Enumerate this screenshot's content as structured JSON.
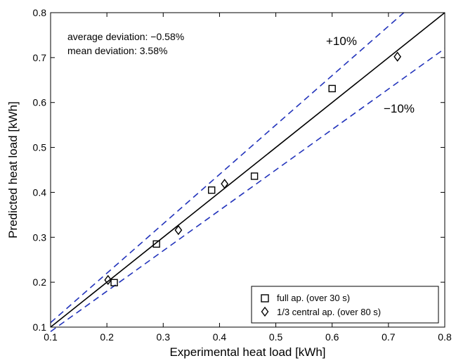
{
  "chart_data": {
    "type": "scatter",
    "xlabel": "Experimental heat load [kWh]",
    "ylabel": "Predicted heat load [kWh]",
    "xlim": [
      0.1,
      0.8
    ],
    "ylim": [
      0.1,
      0.8
    ],
    "xticks": [
      "0.1",
      "0.2",
      "0.3",
      "0.4",
      "0.5",
      "0.6",
      "0.7",
      "0.8"
    ],
    "yticks": [
      "0.1",
      "0.2",
      "0.3",
      "0.4",
      "0.5",
      "0.6",
      "0.7",
      "0.8"
    ],
    "grid": false,
    "annotations": [
      "average deviation: −0.58%",
      "mean deviation: 3.58%"
    ],
    "bands": [
      {
        "label": "+10%",
        "factor": 1.1,
        "style": "dashed",
        "color": "#2233bb"
      },
      {
        "label": "−10%",
        "factor": 0.9,
        "style": "dashed",
        "color": "#2233bb"
      }
    ],
    "reference_line": {
      "slope": 1,
      "color": "#000000"
    },
    "series": [
      {
        "name": "full ap. (over 30 s)",
        "marker": "square",
        "x": [
          0.213,
          0.288,
          0.386,
          0.462,
          0.6
        ],
        "y": [
          0.199,
          0.285,
          0.405,
          0.436,
          0.631
        ]
      },
      {
        "name": "1/3 central ap. (over 80 s)",
        "marker": "diamond",
        "x": [
          0.202,
          0.327,
          0.409,
          0.716
        ],
        "y": [
          0.205,
          0.316,
          0.419,
          0.702
        ]
      }
    ],
    "legend_position": "bottom-right"
  }
}
